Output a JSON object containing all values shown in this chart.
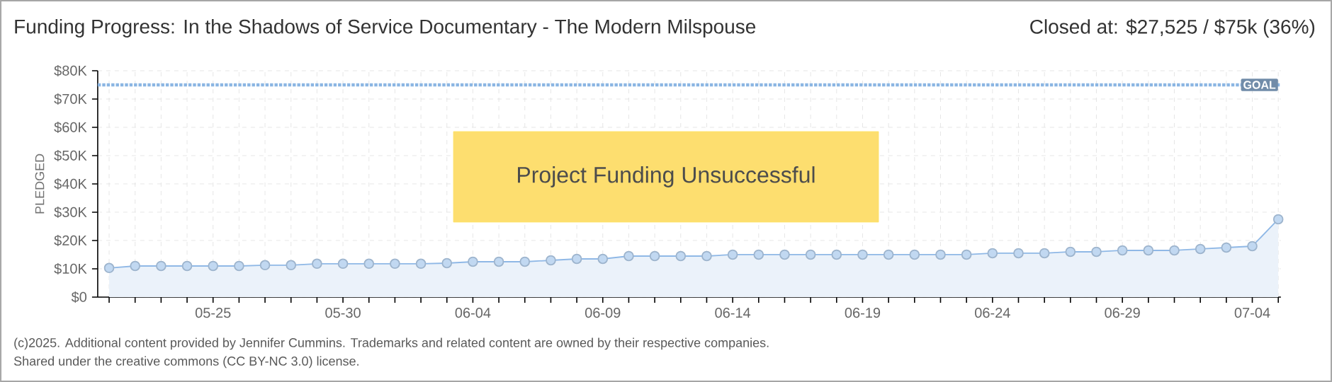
{
  "chart_data": {
    "type": "area",
    "title": "Funding Progress: In the Shadows of Service Documentary - The Modern Milspouse",
    "ylabel": "PLEDGED",
    "categories": [
      null,
      null,
      null,
      null,
      "05-25",
      null,
      null,
      null,
      null,
      "05-30",
      null,
      null,
      null,
      null,
      "06-04",
      null,
      null,
      null,
      null,
      "06-09",
      null,
      null,
      null,
      null,
      "06-14",
      null,
      null,
      null,
      null,
      "06-19",
      null,
      null,
      null,
      null,
      "06-24",
      null,
      null,
      null,
      null,
      "06-29",
      null,
      null,
      null,
      null,
      "07-04",
      null
    ],
    "values": [
      10.3,
      11.0,
      11.0,
      11.0,
      11.0,
      11.0,
      11.3,
      11.3,
      11.8,
      11.8,
      11.8,
      11.8,
      11.8,
      12.0,
      12.5,
      12.5,
      12.5,
      13.0,
      13.5,
      13.5,
      14.5,
      14.5,
      14.5,
      14.5,
      15.0,
      15.0,
      15.0,
      15.0,
      15.0,
      15.0,
      15.0,
      15.0,
      15.0,
      15.0,
      15.5,
      15.5,
      15.5,
      16.0,
      16.0,
      16.5,
      16.5,
      16.5,
      17.0,
      17.5,
      18.0,
      27.5
    ],
    "color": "#8fb8e6",
    "marker": "circle",
    "grid": true,
    "ylim": [
      0,
      80
    ],
    "yticks": [
      {
        "value": 0,
        "label": "$0"
      },
      {
        "value": 10,
        "label": "$10K"
      },
      {
        "value": 20,
        "label": "$20K"
      },
      {
        "value": 30,
        "label": "$30K"
      },
      {
        "value": 40,
        "label": "$40K"
      },
      {
        "value": 50,
        "label": "$50K"
      },
      {
        "value": 60,
        "label": "$60K"
      },
      {
        "value": 70,
        "label": "$70K"
      },
      {
        "value": 80,
        "label": "$80K"
      }
    ],
    "ref_lines": [
      {
        "axis": "y",
        "value": 75,
        "label": "GOAL",
        "color": "#8bb6e3",
        "line_style": "dotted"
      }
    ],
    "annotations": [
      "Closed at: $27,525 / $75k (36%)",
      "Project Funding Unsuccessful",
      "(c)2025. Additional content provided by Jennifer Cummins. Trademarks and related content are owned by their respective companies.",
      "Shared under the creative commons (CC BY-NC 3.0) license."
    ]
  }
}
